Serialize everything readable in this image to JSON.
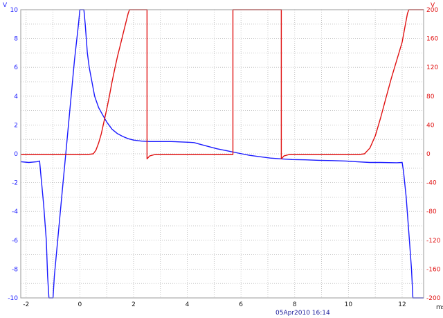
{
  "chart_data": {
    "type": "line",
    "left_axis": {
      "unit": "V",
      "ylim": [
        -10,
        10
      ],
      "ticks": [
        "10",
        "8",
        "6",
        "4",
        "2",
        "0",
        "-2",
        "-4",
        "-6",
        "-8",
        "-10"
      ],
      "color": "#1a1aff"
    },
    "right_axis": {
      "unit": "V",
      "ylim": [
        -200,
        200
      ],
      "ticks": [
        "200",
        "160",
        "120",
        "80",
        "40",
        "0",
        "-40",
        "-80",
        "-120",
        "-160",
        "-200"
      ],
      "color": "#e01010"
    },
    "x_axis": {
      "unit": "ms",
      "xlim": [
        -2.2,
        12.8
      ],
      "ticks": [
        "-2",
        "0",
        "2",
        "4",
        "6",
        "8",
        "10",
        "12"
      ]
    },
    "grid": true,
    "timestamp": "05Apr2010  16:14",
    "series": [
      {
        "axis": "left",
        "color": "#1a1aff",
        "points": [
          [
            -2.2,
            -0.55
          ],
          [
            -1.9,
            -0.6
          ],
          [
            -1.6,
            -0.55
          ],
          [
            -1.5,
            -0.5
          ],
          [
            -1.45,
            -1.5
          ],
          [
            -1.35,
            -3.5
          ],
          [
            -1.25,
            -6
          ],
          [
            -1.2,
            -8.5
          ],
          [
            -1.15,
            -10
          ],
          [
            -1.0,
            -10
          ],
          [
            -0.95,
            -8.5
          ],
          [
            -0.8,
            -5.5
          ],
          [
            -0.65,
            -2.5
          ],
          [
            -0.5,
            0.5
          ],
          [
            -0.35,
            3.5
          ],
          [
            -0.2,
            6.5
          ],
          [
            -0.05,
            9
          ],
          [
            0.0,
            10
          ],
          [
            0.15,
            10
          ],
          [
            0.2,
            9
          ],
          [
            0.28,
            7
          ],
          [
            0.35,
            6
          ],
          [
            0.45,
            5
          ],
          [
            0.55,
            4
          ],
          [
            0.7,
            3.2
          ],
          [
            0.85,
            2.7
          ],
          [
            1.0,
            2.2
          ],
          [
            1.2,
            1.7
          ],
          [
            1.4,
            1.4
          ],
          [
            1.6,
            1.2
          ],
          [
            1.8,
            1.05
          ],
          [
            2.0,
            0.95
          ],
          [
            2.3,
            0.88
          ],
          [
            2.6,
            0.85
          ],
          [
            3.0,
            0.85
          ],
          [
            3.4,
            0.85
          ],
          [
            3.8,
            0.82
          ],
          [
            4.1,
            0.8
          ],
          [
            4.25,
            0.78
          ],
          [
            4.4,
            0.7
          ],
          [
            4.7,
            0.55
          ],
          [
            5.1,
            0.35
          ],
          [
            5.5,
            0.2
          ],
          [
            5.9,
            0.05
          ],
          [
            6.3,
            -0.1
          ],
          [
            6.7,
            -0.2
          ],
          [
            7.1,
            -0.3
          ],
          [
            7.5,
            -0.35
          ],
          [
            7.9,
            -0.4
          ],
          [
            8.4,
            -0.42
          ],
          [
            8.9,
            -0.45
          ],
          [
            9.4,
            -0.47
          ],
          [
            9.9,
            -0.5
          ],
          [
            10.3,
            -0.55
          ],
          [
            10.8,
            -0.6
          ],
          [
            11.2,
            -0.6
          ],
          [
            11.8,
            -0.62
          ],
          [
            12.0,
            -0.6
          ],
          [
            12.05,
            -1.2
          ],
          [
            12.15,
            -3
          ],
          [
            12.25,
            -5.5
          ],
          [
            12.35,
            -8
          ],
          [
            12.4,
            -10
          ],
          [
            12.8,
            -10
          ]
        ]
      },
      {
        "axis": "right",
        "color": "#e01010",
        "points": [
          [
            -2.2,
            -1
          ],
          [
            0.3,
            -1
          ],
          [
            0.5,
            0
          ],
          [
            0.6,
            5
          ],
          [
            0.7,
            15
          ],
          [
            0.8,
            28
          ],
          [
            0.9,
            45
          ],
          [
            1.0,
            62
          ],
          [
            1.1,
            80
          ],
          [
            1.2,
            100
          ],
          [
            1.3,
            118
          ],
          [
            1.4,
            135
          ],
          [
            1.5,
            150
          ],
          [
            1.6,
            165
          ],
          [
            1.7,
            180
          ],
          [
            1.8,
            195
          ],
          [
            1.85,
            200
          ],
          [
            2.0,
            200
          ],
          [
            2.5,
            200
          ],
          [
            2.5,
            -7
          ],
          [
            2.6,
            -3
          ],
          [
            2.8,
            -1
          ],
          [
            3.2,
            -1
          ],
          [
            5.7,
            -1
          ],
          [
            5.7,
            200
          ],
          [
            7.5,
            200
          ],
          [
            7.5,
            -7
          ],
          [
            7.6,
            -3
          ],
          [
            7.8,
            -1
          ],
          [
            8.2,
            -1
          ],
          [
            10.4,
            -1
          ],
          [
            10.6,
            0
          ],
          [
            10.8,
            8
          ],
          [
            11.0,
            25
          ],
          [
            11.2,
            50
          ],
          [
            11.4,
            78
          ],
          [
            11.6,
            105
          ],
          [
            11.8,
            130
          ],
          [
            12.0,
            155
          ],
          [
            12.1,
            175
          ],
          [
            12.2,
            195
          ],
          [
            12.25,
            200
          ],
          [
            12.8,
            200
          ]
        ]
      }
    ]
  }
}
